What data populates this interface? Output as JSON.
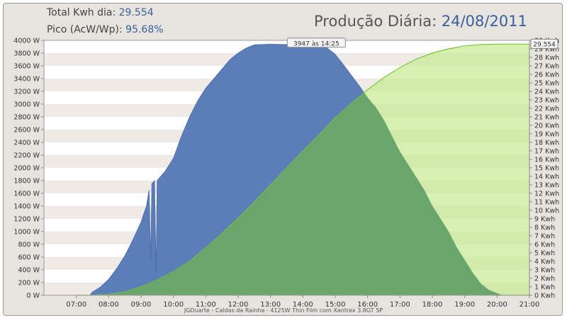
{
  "header": {
    "total_label": "Total Kwh dia:",
    "total_value": "29.554",
    "peak_label": "Pico (AcW/Wp):",
    "peak_value": "95.68%",
    "title_text": "Produção Diária:",
    "title_date": "24/08/2011"
  },
  "footer": {
    "text": "JGDuarte  -  Caldas da Rainha  -  4125W Thin Film com Xantrex 3.8GT SP"
  },
  "colors": {
    "power_fill": "#5b7db8",
    "energy_fill": "#c6eb93",
    "energy_line": "#7bc53d",
    "overlap": "#6aa66b"
  },
  "chart_data": {
    "type": "area",
    "x_ticks": [
      "07:00",
      "08:00",
      "09:00",
      "10:00",
      "11:00",
      "12:00",
      "13:00",
      "14:00",
      "15:00",
      "16:00",
      "17:00",
      "18:00",
      "19:00",
      "20:00",
      "21:00"
    ],
    "xlim": [
      "06:00",
      "21:00"
    ],
    "y_left": {
      "unit": "W",
      "ylim": [
        0,
        4000
      ],
      "step": 200
    },
    "y_right": {
      "unit": "Kwh",
      "ylim": [
        0,
        30
      ],
      "step": 1
    },
    "grid": "alternating-horizontal-bands",
    "peak_annotation": "3947 às 14:25",
    "total_annotation": "29.554",
    "series": [
      {
        "axis": "left",
        "points": [
          [
            "07:25",
            0
          ],
          [
            "07:30",
            50
          ],
          [
            "07:45",
            130
          ],
          [
            "08:00",
            250
          ],
          [
            "08:15",
            420
          ],
          [
            "08:30",
            620
          ],
          [
            "08:45",
            870
          ],
          [
            "09:00",
            1150
          ],
          [
            "09:10",
            1400
          ],
          [
            "09:15",
            1650
          ],
          [
            "09:18",
            530
          ],
          [
            "09:20",
            1750
          ],
          [
            "09:25",
            1800
          ],
          [
            "09:28",
            350
          ],
          [
            "09:30",
            1800
          ],
          [
            "09:45",
            1950
          ],
          [
            "10:00",
            2150
          ],
          [
            "10:15",
            2500
          ],
          [
            "10:30",
            2800
          ],
          [
            "10:45",
            3050
          ],
          [
            "11:00",
            3250
          ],
          [
            "11:15",
            3400
          ],
          [
            "11:30",
            3550
          ],
          [
            "11:45",
            3700
          ],
          [
            "12:00",
            3800
          ],
          [
            "12:15",
            3880
          ],
          [
            "12:30",
            3930
          ],
          [
            "13:00",
            3940
          ],
          [
            "13:30",
            3935
          ],
          [
            "14:00",
            3945
          ],
          [
            "14:25",
            3947
          ],
          [
            "14:45",
            3880
          ],
          [
            "15:00",
            3780
          ],
          [
            "15:15",
            3620
          ],
          [
            "15:30",
            3450
          ],
          [
            "15:45",
            3280
          ],
          [
            "16:00",
            3100
          ],
          [
            "16:15",
            2950
          ],
          [
            "16:30",
            2750
          ],
          [
            "16:45",
            2500
          ],
          [
            "17:00",
            2250
          ],
          [
            "17:15",
            2050
          ],
          [
            "17:30",
            1850
          ],
          [
            "17:45",
            1650
          ],
          [
            "18:00",
            1400
          ],
          [
            "18:15",
            1200
          ],
          [
            "18:30",
            1000
          ],
          [
            "18:45",
            750
          ],
          [
            "19:00",
            550
          ],
          [
            "19:15",
            350
          ],
          [
            "19:30",
            180
          ],
          [
            "19:45",
            80
          ],
          [
            "20:00",
            30
          ],
          [
            "20:10",
            0
          ]
        ]
      },
      {
        "axis": "right",
        "points": [
          [
            "07:00",
            0
          ],
          [
            "07:30",
            0
          ],
          [
            "08:00",
            0.1
          ],
          [
            "08:30",
            0.4
          ],
          [
            "09:00",
            1.0
          ],
          [
            "09:30",
            1.8
          ],
          [
            "10:00",
            2.8
          ],
          [
            "10:30",
            4.0
          ],
          [
            "11:00",
            5.6
          ],
          [
            "11:30",
            7.3
          ],
          [
            "12:00",
            9.1
          ],
          [
            "12:30",
            11.0
          ],
          [
            "13:00",
            13.0
          ],
          [
            "13:30",
            15.0
          ],
          [
            "14:00",
            17.0
          ],
          [
            "14:30",
            18.9
          ],
          [
            "15:00",
            20.9
          ],
          [
            "15:30",
            22.6
          ],
          [
            "16:00",
            24.2
          ],
          [
            "16:30",
            25.6
          ],
          [
            "17:00",
            26.8
          ],
          [
            "17:30",
            27.8
          ],
          [
            "18:00",
            28.5
          ],
          [
            "18:30",
            29.0
          ],
          [
            "19:00",
            29.35
          ],
          [
            "19:30",
            29.5
          ],
          [
            "20:00",
            29.554
          ],
          [
            "21:00",
            29.554
          ]
        ]
      }
    ]
  }
}
